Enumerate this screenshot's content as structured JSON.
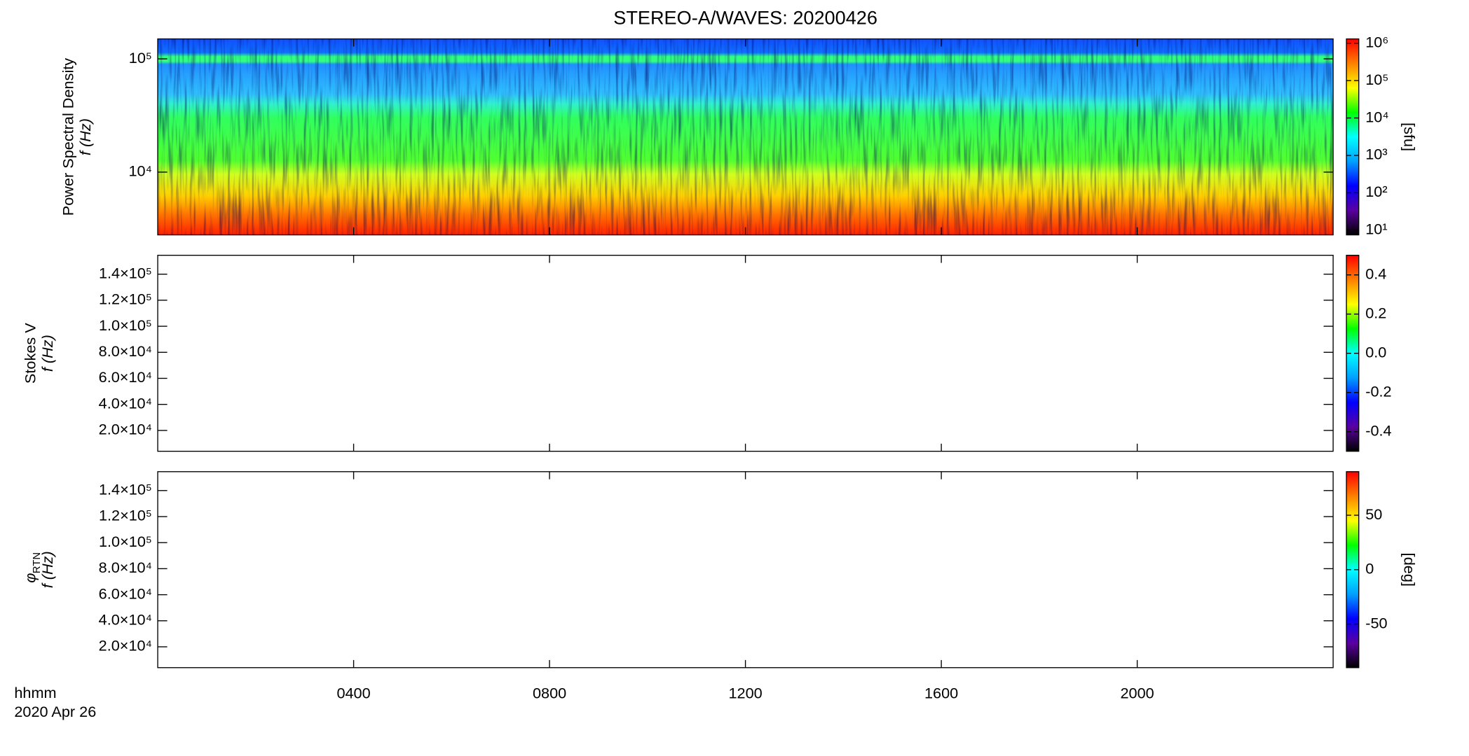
{
  "chart_data": [
    {
      "type": "heatmap",
      "title": "STEREO-A/WAVES: 20200426",
      "ylabel": [
        "Power Spectral Density",
        "f (Hz)"
      ],
      "xlim": [
        0,
        24
      ],
      "xticks": [
        4,
        8,
        12,
        16,
        20
      ],
      "ylog": true,
      "ylim": [
        2790,
        150000
      ],
      "yticks": [
        {
          "value": 10000,
          "label": "10⁴"
        },
        {
          "value": 100000,
          "label": "10⁵"
        }
      ],
      "colorbar": {
        "label": "[sfu]",
        "log": true,
        "lim": [
          7.5,
          1300000
        ],
        "ticks": [
          {
            "value": 10,
            "label": "10¹"
          },
          {
            "value": 100,
            "label": "10²"
          },
          {
            "value": 1000,
            "label": "10³"
          },
          {
            "value": 10000,
            "label": "10⁴"
          },
          {
            "value": 100000,
            "label": "10⁵"
          },
          {
            "value": 1000000,
            "label": "10⁶"
          }
        ],
        "colormap": [
          "#000000",
          "#5a00a0",
          "#0000ff",
          "#00a0ff",
          "#00ffff",
          "#00ff00",
          "#ffff00",
          "#ff8000",
          "#ff0000"
        ]
      }
    },
    {
      "type": "heatmap",
      "ylabel": [
        "Stokes V",
        "f (Hz)"
      ],
      "xlim": [
        0,
        24
      ],
      "xticks": [
        4,
        8,
        12,
        16,
        20
      ],
      "ylog": false,
      "ylim": [
        4000,
        154500
      ],
      "yticks": [
        {
          "value": 20000,
          "label": "2.0×10⁴"
        },
        {
          "value": 40000,
          "label": "4.0×10⁴"
        },
        {
          "value": 60000,
          "label": "6.0×10⁴"
        },
        {
          "value": 80000,
          "label": "8.0×10⁴"
        },
        {
          "value": 100000,
          "label": "1.0×10⁵"
        },
        {
          "value": 120000,
          "label": "1.2×10⁵"
        },
        {
          "value": 140000,
          "label": "1.4×10⁵"
        }
      ],
      "colorbar": {
        "log": false,
        "lim": [
          -0.5,
          0.5
        ],
        "ticks": [
          -0.4,
          -0.2,
          {
            "value": 0,
            "label": "0.0"
          },
          0.2,
          0.4
        ],
        "colormap": [
          "#000000",
          "#5a00a0",
          "#0000ff",
          "#00a0ff",
          "#00ffff",
          "#00ff00",
          "#ffff00",
          "#ff8000",
          "#ff0000"
        ]
      }
    },
    {
      "type": "heatmap",
      "ylabel": [
        "φ",
        "f (Hz)"
      ],
      "ylabel_sub": "RTN",
      "xlim": [
        0,
        24
      ],
      "xticks": [
        {
          "value": 4,
          "label": "0400"
        },
        {
          "value": 8,
          "label": "0800"
        },
        {
          "value": 12,
          "label": "1200"
        },
        {
          "value": 16,
          "label": "1600"
        },
        {
          "value": 20,
          "label": "2000"
        }
      ],
      "xlabel": [
        "hhmm",
        "2020 Apr 26"
      ],
      "ylog": false,
      "ylim": [
        4000,
        154500
      ],
      "yticks": [
        {
          "value": 20000,
          "label": "2.0×10⁴"
        },
        {
          "value": 40000,
          "label": "4.0×10⁴"
        },
        {
          "value": 60000,
          "label": "6.0×10⁴"
        },
        {
          "value": 80000,
          "label": "8.0×10⁴"
        },
        {
          "value": 100000,
          "label": "1.0×10⁵"
        },
        {
          "value": 120000,
          "label": "1.2×10⁵"
        },
        {
          "value": 140000,
          "label": "1.4×10⁵"
        }
      ],
      "colorbar": {
        "label": "[deg]",
        "log": false,
        "lim": [
          -90,
          90
        ],
        "ticks": [
          -50,
          0,
          50
        ],
        "colormap": [
          "#000000",
          "#5a00a0",
          "#0000ff",
          "#00a0ff",
          "#00ffff",
          "#00ff00",
          "#ffff00",
          "#ff8000",
          "#ff0000"
        ]
      }
    }
  ]
}
